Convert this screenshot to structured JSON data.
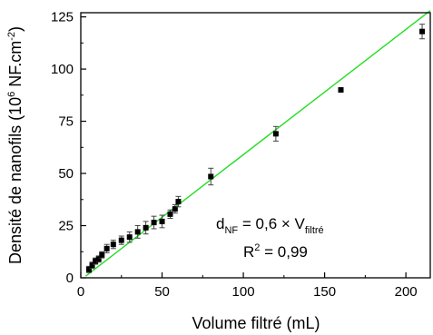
{
  "chart_data": {
    "type": "scatter",
    "xlabel": "Volume filtré (mL)",
    "ylabel": {
      "main": "Densité de nanofils (10",
      "exponent": "6",
      "unit": " NF.cm",
      "unit_exponent": "-2",
      "close": ")"
    },
    "xlim": [
      0,
      215
    ],
    "ylim": [
      0,
      127
    ],
    "x_ticks": [
      0,
      50,
      100,
      150,
      200
    ],
    "y_ticks": [
      0,
      25,
      50,
      75,
      100,
      125
    ],
    "grid": false,
    "marker_color": "#000000",
    "fit_color": "#22dd22",
    "series": [
      {
        "points": [
          {
            "x": 5,
            "y": 4,
            "err": 1.5
          },
          {
            "x": 7,
            "y": 6,
            "err": 1.5
          },
          {
            "x": 9,
            "y": 8,
            "err": 1.5
          },
          {
            "x": 11,
            "y": 9,
            "err": 1.5
          },
          {
            "x": 13,
            "y": 11,
            "err": 1.5
          },
          {
            "x": 16,
            "y": 14,
            "err": 2
          },
          {
            "x": 20,
            "y": 16,
            "err": 2
          },
          {
            "x": 25,
            "y": 18,
            "err": 2
          },
          {
            "x": 30,
            "y": 19.5,
            "err": 2.5
          },
          {
            "x": 35,
            "y": 22,
            "err": 3
          },
          {
            "x": 40,
            "y": 24,
            "err": 3
          },
          {
            "x": 45,
            "y": 26.5,
            "err": 3
          },
          {
            "x": 50,
            "y": 27,
            "err": 3
          },
          {
            "x": 55,
            "y": 30.5,
            "err": 2
          },
          {
            "x": 58,
            "y": 33,
            "err": 2
          },
          {
            "x": 60,
            "y": 36.5,
            "err": 2.5
          },
          {
            "x": 80,
            "y": 48.5,
            "err": 4
          },
          {
            "x": 120,
            "y": 69,
            "err": 3.5
          },
          {
            "x": 160,
            "y": 90,
            "err": 1
          },
          {
            "x": 210,
            "y": 118,
            "err": 3.5
          }
        ]
      }
    ],
    "fit": {
      "slope": 0.6,
      "intercept": -1,
      "x_start": 3,
      "x_end": 215
    },
    "annotations": {
      "equation": {
        "lhs": "d",
        "lhs_sub": "NF",
        "mid": " = 0,6 × V",
        "rhs_sub": "filtré"
      },
      "r2": {
        "lhs": "R",
        "sup": "2",
        "rhs": " = 0,99"
      }
    }
  }
}
